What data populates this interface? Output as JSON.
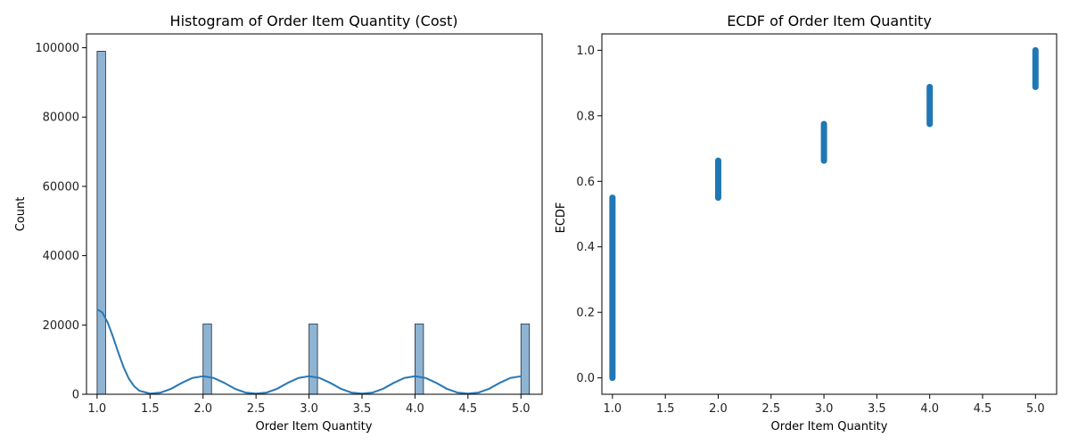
{
  "chart_data": [
    {
      "type": "bar",
      "title": "Histogram of Order Item Quantity (Cost)",
      "xlabel": "Order Item Quantity",
      "ylabel": "Count",
      "xlim": [
        0.9,
        5.2
      ],
      "ylim": [
        0,
        104000
      ],
      "xticks": [
        "1.0",
        "1.5",
        "2.0",
        "2.5",
        "3.0",
        "3.5",
        "4.0",
        "4.5",
        "5.0"
      ],
      "yticks": [
        "0",
        "20000",
        "40000",
        "60000",
        "80000",
        "100000"
      ],
      "bin_width": 0.08,
      "bins": [
        {
          "x": 1.0,
          "count": 99000
        },
        {
          "x": 2.0,
          "count": 20300
        },
        {
          "x": 3.0,
          "count": 20300
        },
        {
          "x": 4.0,
          "count": 20300
        },
        {
          "x": 5.0,
          "count": 20300
        }
      ],
      "kde": {
        "x": [
          1.0,
          1.05,
          1.1,
          1.15,
          1.2,
          1.25,
          1.3,
          1.35,
          1.4,
          1.5,
          1.6,
          1.7,
          1.8,
          1.9,
          2.0,
          2.1,
          2.2,
          2.3,
          2.4,
          2.5,
          2.6,
          2.7,
          2.8,
          2.9,
          3.0,
          3.1,
          3.2,
          3.3,
          3.4,
          3.5,
          3.6,
          3.7,
          3.8,
          3.9,
          4.0,
          4.1,
          4.2,
          4.3,
          4.4,
          4.5,
          4.6,
          4.7,
          4.8,
          4.9,
          5.0
        ],
        "y": [
          24500,
          23600,
          20700,
          16600,
          12000,
          7800,
          4500,
          2300,
          1000,
          200,
          500,
          1600,
          3300,
          4700,
          5200,
          4700,
          3300,
          1600,
          500,
          200,
          500,
          1600,
          3300,
          4700,
          5200,
          4700,
          3300,
          1600,
          500,
          200,
          500,
          1600,
          3300,
          4700,
          5200,
          4700,
          3300,
          1600,
          500,
          200,
          500,
          1600,
          3300,
          4700,
          5200
        ]
      },
      "colors": {
        "bar": "#8fb4d3",
        "edge": "#1b2a3a",
        "kde": "#2878b5"
      }
    },
    {
      "type": "scatter",
      "title": "ECDF of Order Item Quantity",
      "xlabel": "Order Item Quantity",
      "ylabel": "ECDF",
      "xlim": [
        0.9,
        5.2
      ],
      "ylim": [
        -0.05,
        1.05
      ],
      "xticks": [
        "1.0",
        "1.5",
        "2.0",
        "2.5",
        "3.0",
        "3.5",
        "4.0",
        "4.5",
        "5.0"
      ],
      "yticks": [
        "0.0",
        "0.2",
        "0.4",
        "0.6",
        "0.8",
        "1.0"
      ],
      "steps": [
        {
          "x": 1,
          "from": 0.0,
          "to": 0.55
        },
        {
          "x": 2,
          "from": 0.55,
          "to": 0.663
        },
        {
          "x": 3,
          "from": 0.663,
          "to": 0.775
        },
        {
          "x": 4,
          "from": 0.775,
          "to": 0.888
        },
        {
          "x": 5,
          "from": 0.888,
          "to": 1.0
        }
      ],
      "colors": {
        "points": "#1f77b4"
      }
    }
  ]
}
